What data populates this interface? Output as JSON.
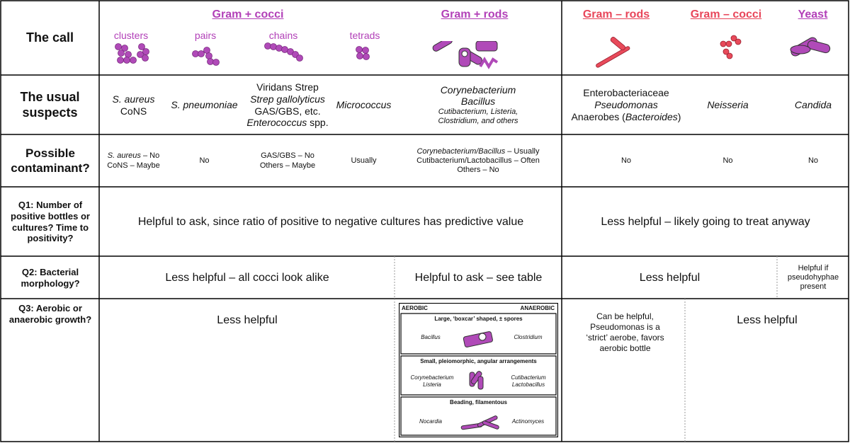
{
  "colors": {
    "gram_positive": "#b240b8",
    "gram_negative": "#e8465a",
    "organism_fill": "#b04ab8",
    "gneg_fill": "#e84a5a",
    "border": "#000000",
    "dotted": "#999999"
  },
  "groups": {
    "gram_pos_cocci": "Gram + cocci",
    "gram_pos_rods": "Gram + rods",
    "gram_neg_rods": "Gram – rods",
    "gram_neg_cocci": "Gram – cocci",
    "yeast": "Yeast"
  },
  "subgroups": {
    "clusters": "clusters",
    "pairs": "pairs",
    "chains": "chains",
    "tetrads": "tetrads"
  },
  "rows": {
    "the_call": "The call",
    "usual_suspects": "The usual suspects",
    "contaminant": "Possible contaminant?",
    "q1": "Q1: Number of positive bottles or cultures? Time to positivity?",
    "q2": "Q2: Bacterial morphology?",
    "q3": "Q3: Aerobic or anaerobic growth?"
  },
  "suspects": {
    "clusters": {
      "line1": "S. aureus",
      "line2": "CoNS"
    },
    "pairs": "S. pneumoniae",
    "chains": {
      "line1": "Viridans Strep",
      "line2": "Strep gallolyticus",
      "line3": "GAS/GBS, etc.",
      "line4": "Enterococcus",
      "line4b": " spp."
    },
    "tetrads": "Micrococcus",
    "rods": {
      "line1": "Corynebacterium",
      "line2": "Bacillus",
      "line3": "Cutibacterium, Listeria,",
      "line4": "Clostridium, and others"
    },
    "gneg_rods": {
      "line1": "Enterobacteriaceae",
      "line2": "Pseudomonas",
      "line3a": "Anaerobes (",
      "line3b": "Bacteroides",
      "line3c": ")"
    },
    "gneg_cocci": "Neisseria",
    "yeast": "Candida"
  },
  "contaminant": {
    "clusters": {
      "a": "S. aureus",
      "b": " – No",
      "c": "CoNS – Maybe"
    },
    "pairs": "No",
    "chains": {
      "line1": "GAS/GBS – No",
      "line2": "Others – Maybe"
    },
    "tetrads": "Usually",
    "rods": {
      "line1": "Corynebacterium/Bacillus",
      "line1b": " – Usually",
      "line2": "Cutibacterium/Lactobacillus – Often",
      "line3": "Others – No"
    },
    "gneg_rods": "No",
    "gneg_cocci": "No",
    "yeast": "No"
  },
  "q1": {
    "gram_pos": "Helpful to ask, since ratio of positive to negative cultures has predictive value",
    "gram_neg": "Less helpful – likely going to treat anyway"
  },
  "q2": {
    "cocci": "Less helpful – all cocci look alike",
    "rods": "Helpful to ask – see table",
    "gneg": "Less helpful",
    "yeast": "Helpful if pseudohyphae present"
  },
  "q3": {
    "cocci": "Less helpful",
    "gneg_rods": "Can be helpful, Pseudomonas is a ‘strict’ aerobe, favors aerobic bottle",
    "rest": "Less helpful",
    "table": {
      "aerobic": "AEROBIC",
      "anaerobic": "ANAEROBIC",
      "r1_title": "Large, ‘boxcar’ shaped, ± spores",
      "r1_left": "Bacillus",
      "r1_right": "Clostridium",
      "r2_title": "Small, pleiomorphic, angular arrangements",
      "r2_left1": "Corynebacterium",
      "r2_left2": "Listeria",
      "r2_right1": "Cutibacterium",
      "r2_right2": "Lactobacillus",
      "r3_title": "Beading, filamentous",
      "r3_left": "Nocardia",
      "r3_right": "Actinomyces"
    }
  }
}
